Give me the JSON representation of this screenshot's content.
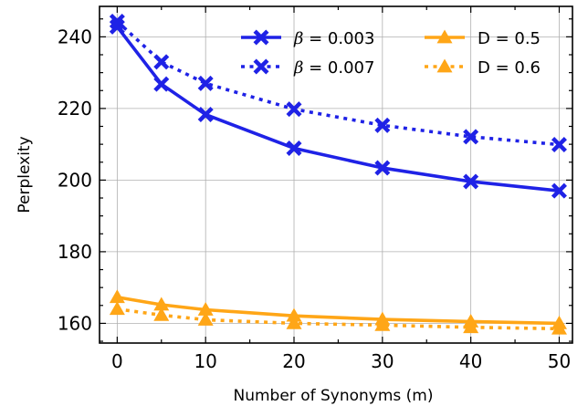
{
  "chart_data": {
    "type": "line",
    "xlabel": "Number of Synonyms (m)",
    "ylabel": "Perplexity",
    "xlim": [
      -2,
      51.5
    ],
    "ylim": [
      154.5,
      248.5
    ],
    "xticks": [
      0,
      10,
      20,
      30,
      40,
      50
    ],
    "yticks": [
      160,
      180,
      200,
      220,
      240
    ],
    "grid": true,
    "legend": {
      "placement": "top-right",
      "columns": 2
    },
    "series": [
      {
        "name": "β = 0.003",
        "name_parts": [
          "β",
          " = 0.003"
        ],
        "color": "#1f22e6",
        "line": "solid",
        "marker": "x-cross",
        "x": [
          0,
          5,
          10,
          20,
          30,
          40,
          50
        ],
        "y": [
          242.8,
          226.8,
          218.3,
          208.9,
          203.4,
          199.6,
          197.0
        ]
      },
      {
        "name": "β = 0.007",
        "name_parts": [
          "β",
          " = 0.007"
        ],
        "color": "#1f22e6",
        "line": "dotted",
        "marker": "x-cross",
        "x": [
          0,
          5,
          10,
          20,
          30,
          40,
          50
        ],
        "y": [
          244.3,
          233.0,
          227.0,
          219.8,
          215.3,
          212.1,
          209.9
        ]
      },
      {
        "name": "D = 0.5",
        "name_parts": [
          "",
          "D = 0.5"
        ],
        "color": "#ffa617",
        "line": "solid",
        "marker": "triangle",
        "x": [
          0,
          5,
          10,
          20,
          30,
          40,
          50
        ],
        "y": [
          167.3,
          165.2,
          163.8,
          162.1,
          161.1,
          160.5,
          160.0
        ]
      },
      {
        "name": "D = 0.6",
        "name_parts": [
          "",
          "D = 0.6"
        ],
        "color": "#ffa617",
        "line": "dotted",
        "marker": "triangle",
        "x": [
          0,
          5,
          10,
          20,
          30,
          40,
          50
        ],
        "y": [
          164.0,
          162.3,
          161.0,
          160.0,
          159.5,
          158.9,
          158.5
        ]
      }
    ]
  }
}
